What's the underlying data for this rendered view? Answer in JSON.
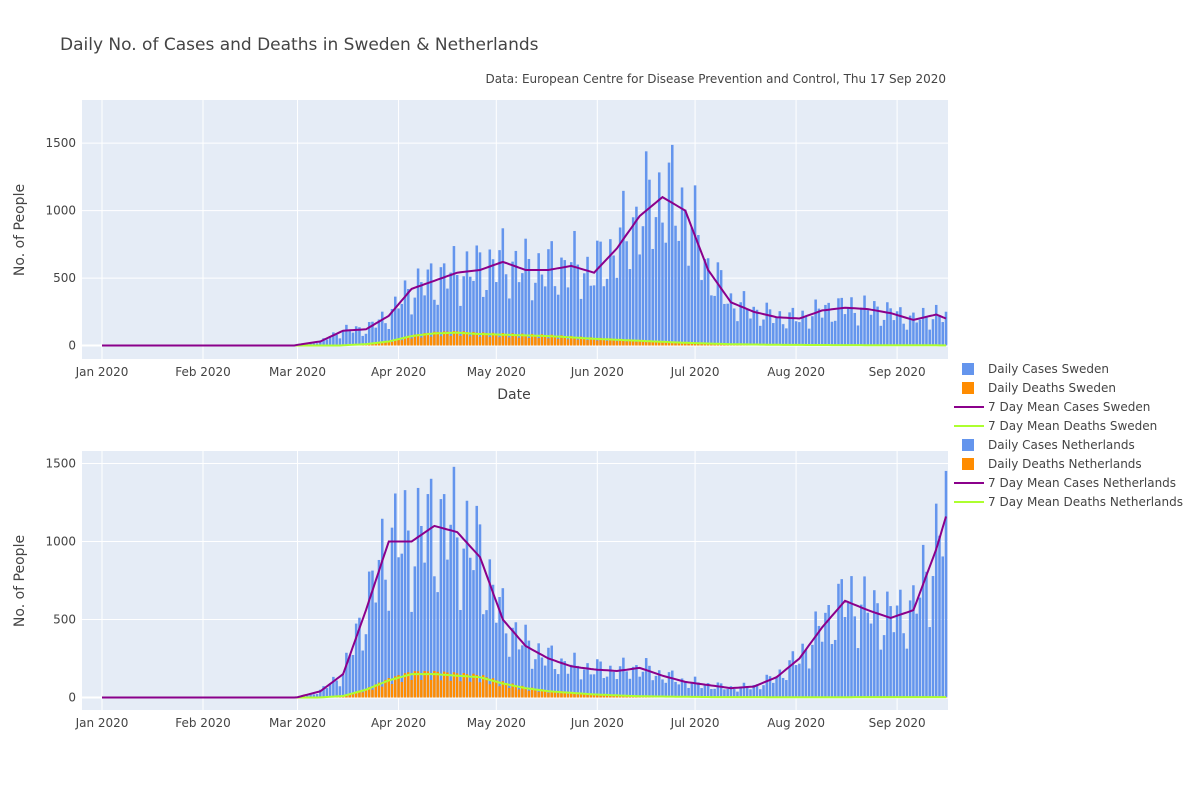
{
  "title": "Daily No. of Cases and Deaths in Sweden & Netherlands",
  "subtitle": "Data: European Centre for Disease Prevention and Control, Thu 17 Sep 2020",
  "colors": {
    "plot_bg": "#e5ecf6",
    "cases_bar": "#6495ed",
    "deaths_bar": "#ff8c00",
    "mean_cases": "#8b008b",
    "mean_deaths": "#adff2f",
    "grid": "#ffffff"
  },
  "x_ticks": [
    "Jan 2020",
    "Feb 2020",
    "Mar 2020",
    "Apr 2020",
    "May 2020",
    "Jun 2020",
    "Jul 2020",
    "Aug 2020",
    "Sep 2020"
  ],
  "legend": [
    {
      "label": "Daily Cases Sweden",
      "kind": "bar",
      "color": "#6495ed"
    },
    {
      "label": "Daily Deaths Sweden",
      "kind": "bar",
      "color": "#ff8c00"
    },
    {
      "label": "7 Day Mean Cases Sweden",
      "kind": "line",
      "color": "#8b008b"
    },
    {
      "label": "7 Day Mean Deaths Sweden",
      "kind": "line",
      "color": "#adff2f"
    },
    {
      "label": "Daily Cases Netherlands",
      "kind": "bar",
      "color": "#6495ed"
    },
    {
      "label": "Daily Deaths Netherlands",
      "kind": "bar",
      "color": "#ff8c00"
    },
    {
      "label": "7 Day Mean Cases Netherlands",
      "kind": "line",
      "color": "#8b008b"
    },
    {
      "label": "7 Day Mean Deaths Netherlands",
      "kind": "line",
      "color": "#adff2f"
    }
  ],
  "chart_data": [
    {
      "type": "bar",
      "panel": "Sweden",
      "xlabel": "Date",
      "ylabel": "No. of People",
      "ylim": [
        -100,
        1820
      ],
      "y_ticks": [
        0,
        500,
        1000,
        1500
      ],
      "x_start": "2020-01-01",
      "cases_weekly_anchors": [
        {
          "date": "2020-03-01",
          "value": 5
        },
        {
          "date": "2020-03-08",
          "value": 30
        },
        {
          "date": "2020-03-15",
          "value": 110
        },
        {
          "date": "2020-03-22",
          "value": 120
        },
        {
          "date": "2020-03-29",
          "value": 220
        },
        {
          "date": "2020-04-05",
          "value": 420
        },
        {
          "date": "2020-04-12",
          "value": 480
        },
        {
          "date": "2020-04-19",
          "value": 540
        },
        {
          "date": "2020-04-26",
          "value": 560
        },
        {
          "date": "2020-05-03",
          "value": 620
        },
        {
          "date": "2020-05-10",
          "value": 560
        },
        {
          "date": "2020-05-17",
          "value": 560
        },
        {
          "date": "2020-05-24",
          "value": 590
        },
        {
          "date": "2020-05-31",
          "value": 540
        },
        {
          "date": "2020-06-07",
          "value": 720
        },
        {
          "date": "2020-06-14",
          "value": 960
        },
        {
          "date": "2020-06-21",
          "value": 1100
        },
        {
          "date": "2020-06-28",
          "value": 1000
        },
        {
          "date": "2020-07-05",
          "value": 560
        },
        {
          "date": "2020-07-12",
          "value": 320
        },
        {
          "date": "2020-07-19",
          "value": 250
        },
        {
          "date": "2020-07-26",
          "value": 210
        },
        {
          "date": "2020-08-02",
          "value": 200
        },
        {
          "date": "2020-08-09",
          "value": 260
        },
        {
          "date": "2020-08-16",
          "value": 280
        },
        {
          "date": "2020-08-23",
          "value": 270
        },
        {
          "date": "2020-08-30",
          "value": 240
        },
        {
          "date": "2020-09-06",
          "value": 190
        },
        {
          "date": "2020-09-13",
          "value": 230
        },
        {
          "date": "2020-09-17",
          "value": 190
        }
      ],
      "deaths_weekly_anchors": [
        {
          "date": "2020-03-15",
          "value": 2
        },
        {
          "date": "2020-03-22",
          "value": 10
        },
        {
          "date": "2020-03-29",
          "value": 30
        },
        {
          "date": "2020-04-05",
          "value": 70
        },
        {
          "date": "2020-04-12",
          "value": 90
        },
        {
          "date": "2020-04-19",
          "value": 95
        },
        {
          "date": "2020-04-26",
          "value": 85
        },
        {
          "date": "2020-05-03",
          "value": 80
        },
        {
          "date": "2020-05-17",
          "value": 70
        },
        {
          "date": "2020-05-31",
          "value": 50
        },
        {
          "date": "2020-06-14",
          "value": 35
        },
        {
          "date": "2020-06-28",
          "value": 20
        },
        {
          "date": "2020-07-12",
          "value": 10
        },
        {
          "date": "2020-07-26",
          "value": 5
        },
        {
          "date": "2020-08-16",
          "value": 3
        },
        {
          "date": "2020-09-17",
          "value": 1
        }
      ]
    },
    {
      "type": "bar",
      "panel": "Netherlands",
      "xlabel": "",
      "ylabel": "No. of People",
      "ylim": [
        -80,
        1580
      ],
      "y_ticks": [
        0,
        500,
        1000,
        1500
      ],
      "x_start": "2020-01-01",
      "cases_weekly_anchors": [
        {
          "date": "2020-03-01",
          "value": 2
        },
        {
          "date": "2020-03-08",
          "value": 40
        },
        {
          "date": "2020-03-15",
          "value": 150
        },
        {
          "date": "2020-03-22",
          "value": 560
        },
        {
          "date": "2020-03-29",
          "value": 1000
        },
        {
          "date": "2020-04-05",
          "value": 1000
        },
        {
          "date": "2020-04-12",
          "value": 1100
        },
        {
          "date": "2020-04-19",
          "value": 1060
        },
        {
          "date": "2020-04-26",
          "value": 900
        },
        {
          "date": "2020-05-03",
          "value": 500
        },
        {
          "date": "2020-05-10",
          "value": 330
        },
        {
          "date": "2020-05-17",
          "value": 250
        },
        {
          "date": "2020-05-24",
          "value": 200
        },
        {
          "date": "2020-05-31",
          "value": 180
        },
        {
          "date": "2020-06-07",
          "value": 170
        },
        {
          "date": "2020-06-14",
          "value": 190
        },
        {
          "date": "2020-06-21",
          "value": 140
        },
        {
          "date": "2020-06-28",
          "value": 100
        },
        {
          "date": "2020-07-05",
          "value": 80
        },
        {
          "date": "2020-07-12",
          "value": 60
        },
        {
          "date": "2020-07-19",
          "value": 70
        },
        {
          "date": "2020-07-26",
          "value": 130
        },
        {
          "date": "2020-08-02",
          "value": 250
        },
        {
          "date": "2020-08-09",
          "value": 450
        },
        {
          "date": "2020-08-16",
          "value": 620
        },
        {
          "date": "2020-08-23",
          "value": 560
        },
        {
          "date": "2020-08-30",
          "value": 510
        },
        {
          "date": "2020-09-06",
          "value": 560
        },
        {
          "date": "2020-09-13",
          "value": 950
        },
        {
          "date": "2020-09-17",
          "value": 1230
        }
      ],
      "deaths_weekly_anchors": [
        {
          "date": "2020-03-08",
          "value": 1
        },
        {
          "date": "2020-03-15",
          "value": 10
        },
        {
          "date": "2020-03-22",
          "value": 50
        },
        {
          "date": "2020-03-29",
          "value": 110
        },
        {
          "date": "2020-04-05",
          "value": 150
        },
        {
          "date": "2020-04-12",
          "value": 150
        },
        {
          "date": "2020-04-19",
          "value": 140
        },
        {
          "date": "2020-04-26",
          "value": 130
        },
        {
          "date": "2020-05-03",
          "value": 90
        },
        {
          "date": "2020-05-10",
          "value": 60
        },
        {
          "date": "2020-05-17",
          "value": 40
        },
        {
          "date": "2020-05-31",
          "value": 20
        },
        {
          "date": "2020-06-14",
          "value": 8
        },
        {
          "date": "2020-07-05",
          "value": 3
        },
        {
          "date": "2020-08-02",
          "value": 2
        },
        {
          "date": "2020-09-17",
          "value": 3
        }
      ]
    }
  ]
}
